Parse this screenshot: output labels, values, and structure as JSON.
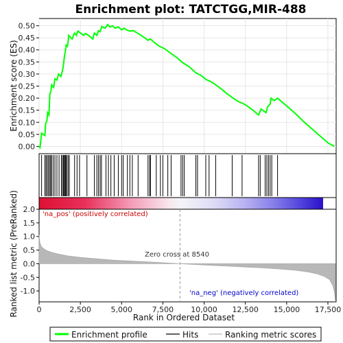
{
  "chart_data": {
    "type": "line",
    "title": "Enrichment plot: TATCTGG,MIR-488",
    "es_panel": {
      "ylabel": "Enrichment score (ES)",
      "ylim": [
        -0.03,
        0.53
      ],
      "yticks": [
        0.0,
        0.05,
        0.1,
        0.15,
        0.2,
        0.25,
        0.3,
        0.35,
        0.4,
        0.45,
        0.5
      ],
      "ytick_labels": [
        "0.00",
        "0.05",
        "0.10",
        "0.15",
        "0.20",
        "0.25",
        "0.30",
        "0.35",
        "0.40",
        "0.45",
        "0.50"
      ],
      "series_name": "Enrichment profile",
      "color": "#00ff00",
      "points": [
        [
          0,
          0.0
        ],
        [
          60,
          -0.005
        ],
        [
          150,
          0.055
        ],
        [
          350,
          0.045
        ],
        [
          400,
          0.095
        ],
        [
          470,
          0.105
        ],
        [
          520,
          0.14
        ],
        [
          600,
          0.13
        ],
        [
          650,
          0.215
        ],
        [
          720,
          0.23
        ],
        [
          760,
          0.255
        ],
        [
          880,
          0.245
        ],
        [
          960,
          0.28
        ],
        [
          1080,
          0.275
        ],
        [
          1180,
          0.3
        ],
        [
          1320,
          0.29
        ],
        [
          1420,
          0.315
        ],
        [
          1480,
          0.34
        ],
        [
          1530,
          0.37
        ],
        [
          1580,
          0.39
        ],
        [
          1640,
          0.42
        ],
        [
          1720,
          0.415
        ],
        [
          1800,
          0.46
        ],
        [
          2000,
          0.445
        ],
        [
          2150,
          0.47
        ],
        [
          2260,
          0.46
        ],
        [
          2350,
          0.478
        ],
        [
          2700,
          0.46
        ],
        [
          2800,
          0.468
        ],
        [
          3000,
          0.46
        ],
        [
          3250,
          0.445
        ],
        [
          3350,
          0.47
        ],
        [
          3500,
          0.46
        ],
        [
          3600,
          0.48
        ],
        [
          3700,
          0.475
        ],
        [
          3800,
          0.497
        ],
        [
          4000,
          0.49
        ],
        [
          4150,
          0.505
        ],
        [
          4300,
          0.495
        ],
        [
          4450,
          0.5
        ],
        [
          4600,
          0.49
        ],
        [
          4800,
          0.495
        ],
        [
          5000,
          0.483
        ],
        [
          5150,
          0.49
        ],
        [
          5300,
          0.483
        ],
        [
          5500,
          0.478
        ],
        [
          5700,
          0.48
        ],
        [
          6000,
          0.468
        ],
        [
          6300,
          0.455
        ],
        [
          6600,
          0.44
        ],
        [
          6750,
          0.445
        ],
        [
          7000,
          0.43
        ],
        [
          7300,
          0.415
        ],
        [
          7600,
          0.405
        ],
        [
          8000,
          0.385
        ],
        [
          8400,
          0.365
        ],
        [
          8700,
          0.347
        ],
        [
          9100,
          0.33
        ],
        [
          9500,
          0.305
        ],
        [
          9800,
          0.295
        ],
        [
          10100,
          0.278
        ],
        [
          10500,
          0.265
        ],
        [
          10700,
          0.255
        ],
        [
          11100,
          0.235
        ],
        [
          11400,
          0.218
        ],
        [
          11750,
          0.2
        ],
        [
          12100,
          0.185
        ],
        [
          12300,
          0.18
        ],
        [
          12600,
          0.168
        ],
        [
          13000,
          0.148
        ],
        [
          13300,
          0.13
        ],
        [
          13450,
          0.155
        ],
        [
          13750,
          0.14
        ],
        [
          13850,
          0.165
        ],
        [
          14000,
          0.175
        ],
        [
          14050,
          0.2
        ],
        [
          14250,
          0.19
        ],
        [
          14450,
          0.2
        ],
        [
          15000,
          0.168
        ],
        [
          15500,
          0.138
        ],
        [
          16000,
          0.105
        ],
        [
          16500,
          0.075
        ],
        [
          17000,
          0.045
        ],
        [
          17500,
          0.015
        ],
        [
          17900,
          0.0
        ]
      ]
    },
    "hits": [
      150,
      350,
      420,
      490,
      560,
      640,
      700,
      760,
      860,
      960,
      1080,
      1210,
      1350,
      1420,
      1480,
      1530,
      1580,
      1620,
      1680,
      1760,
      1830,
      2150,
      2300,
      2450,
      2900,
      3350,
      3500,
      3600,
      3700,
      3780,
      4050,
      4200,
      4350,
      4550,
      4800,
      5000,
      5100,
      5350,
      5500,
      5650,
      6000,
      6600,
      6700,
      6750,
      7100,
      7350,
      7500,
      7800,
      8000,
      8600,
      8700,
      8800,
      9500,
      9600,
      10100,
      10300,
      10700,
      11700,
      12300,
      13300,
      13400,
      13700,
      13800,
      13900,
      14000,
      14100,
      14450
    ],
    "rank_panel": {
      "ylabel": "Ranked list metric (PreRanked)",
      "xlabel": "Rank in Ordered Dataset",
      "ylim": [
        -1.4,
        2.0
      ],
      "yticks": [
        -1.0,
        -0.5,
        0.0,
        0.5,
        1.0,
        1.5,
        2.0
      ],
      "ytick_labels": [
        "-1.0",
        "-0.5",
        "0.0",
        "0.5",
        "1.0",
        "1.5",
        "2.0"
      ],
      "xlim": [
        0,
        18000
      ],
      "xticks": [
        0,
        2500,
        5000,
        7500,
        10000,
        12500,
        15000,
        17500
      ],
      "xtick_labels": [
        "0",
        "2,500",
        "5,000",
        "7,500",
        "10,000",
        "12,500",
        "15,000",
        "17,500"
      ],
      "metric_profile": [
        [
          0,
          1.05
        ],
        [
          50,
          0.75
        ],
        [
          150,
          0.62
        ],
        [
          300,
          0.54
        ],
        [
          500,
          0.47
        ],
        [
          800,
          0.41
        ],
        [
          1200,
          0.35
        ],
        [
          1700,
          0.29
        ],
        [
          2500,
          0.23
        ],
        [
          3500,
          0.18
        ],
        [
          4500,
          0.13
        ],
        [
          5500,
          0.1
        ],
        [
          6500,
          0.07
        ],
        [
          7500,
          0.035
        ],
        [
          8540,
          0.0
        ],
        [
          9500,
          -0.03
        ],
        [
          10500,
          -0.06
        ],
        [
          11500,
          -0.09
        ],
        [
          12500,
          -0.12
        ],
        [
          13500,
          -0.15
        ],
        [
          14500,
          -0.19
        ],
        [
          15500,
          -0.24
        ],
        [
          16300,
          -0.3
        ],
        [
          16900,
          -0.38
        ],
        [
          17300,
          -0.47
        ],
        [
          17600,
          -0.58
        ],
        [
          17800,
          -0.8
        ],
        [
          17900,
          -1.05
        ],
        [
          17950,
          -1.35
        ]
      ],
      "zero_cross_rank": 8540,
      "zero_cross_label": "Zero cross at 8540",
      "pos_label": "'na_pos' (positively correlated)",
      "neg_label": "'na_neg' (negatively correlated)"
    },
    "total_ranks": 17950,
    "legend": {
      "items": [
        "Enrichment profile",
        "Hits",
        "Ranking metric scores"
      ],
      "placement": "bottom"
    }
  }
}
